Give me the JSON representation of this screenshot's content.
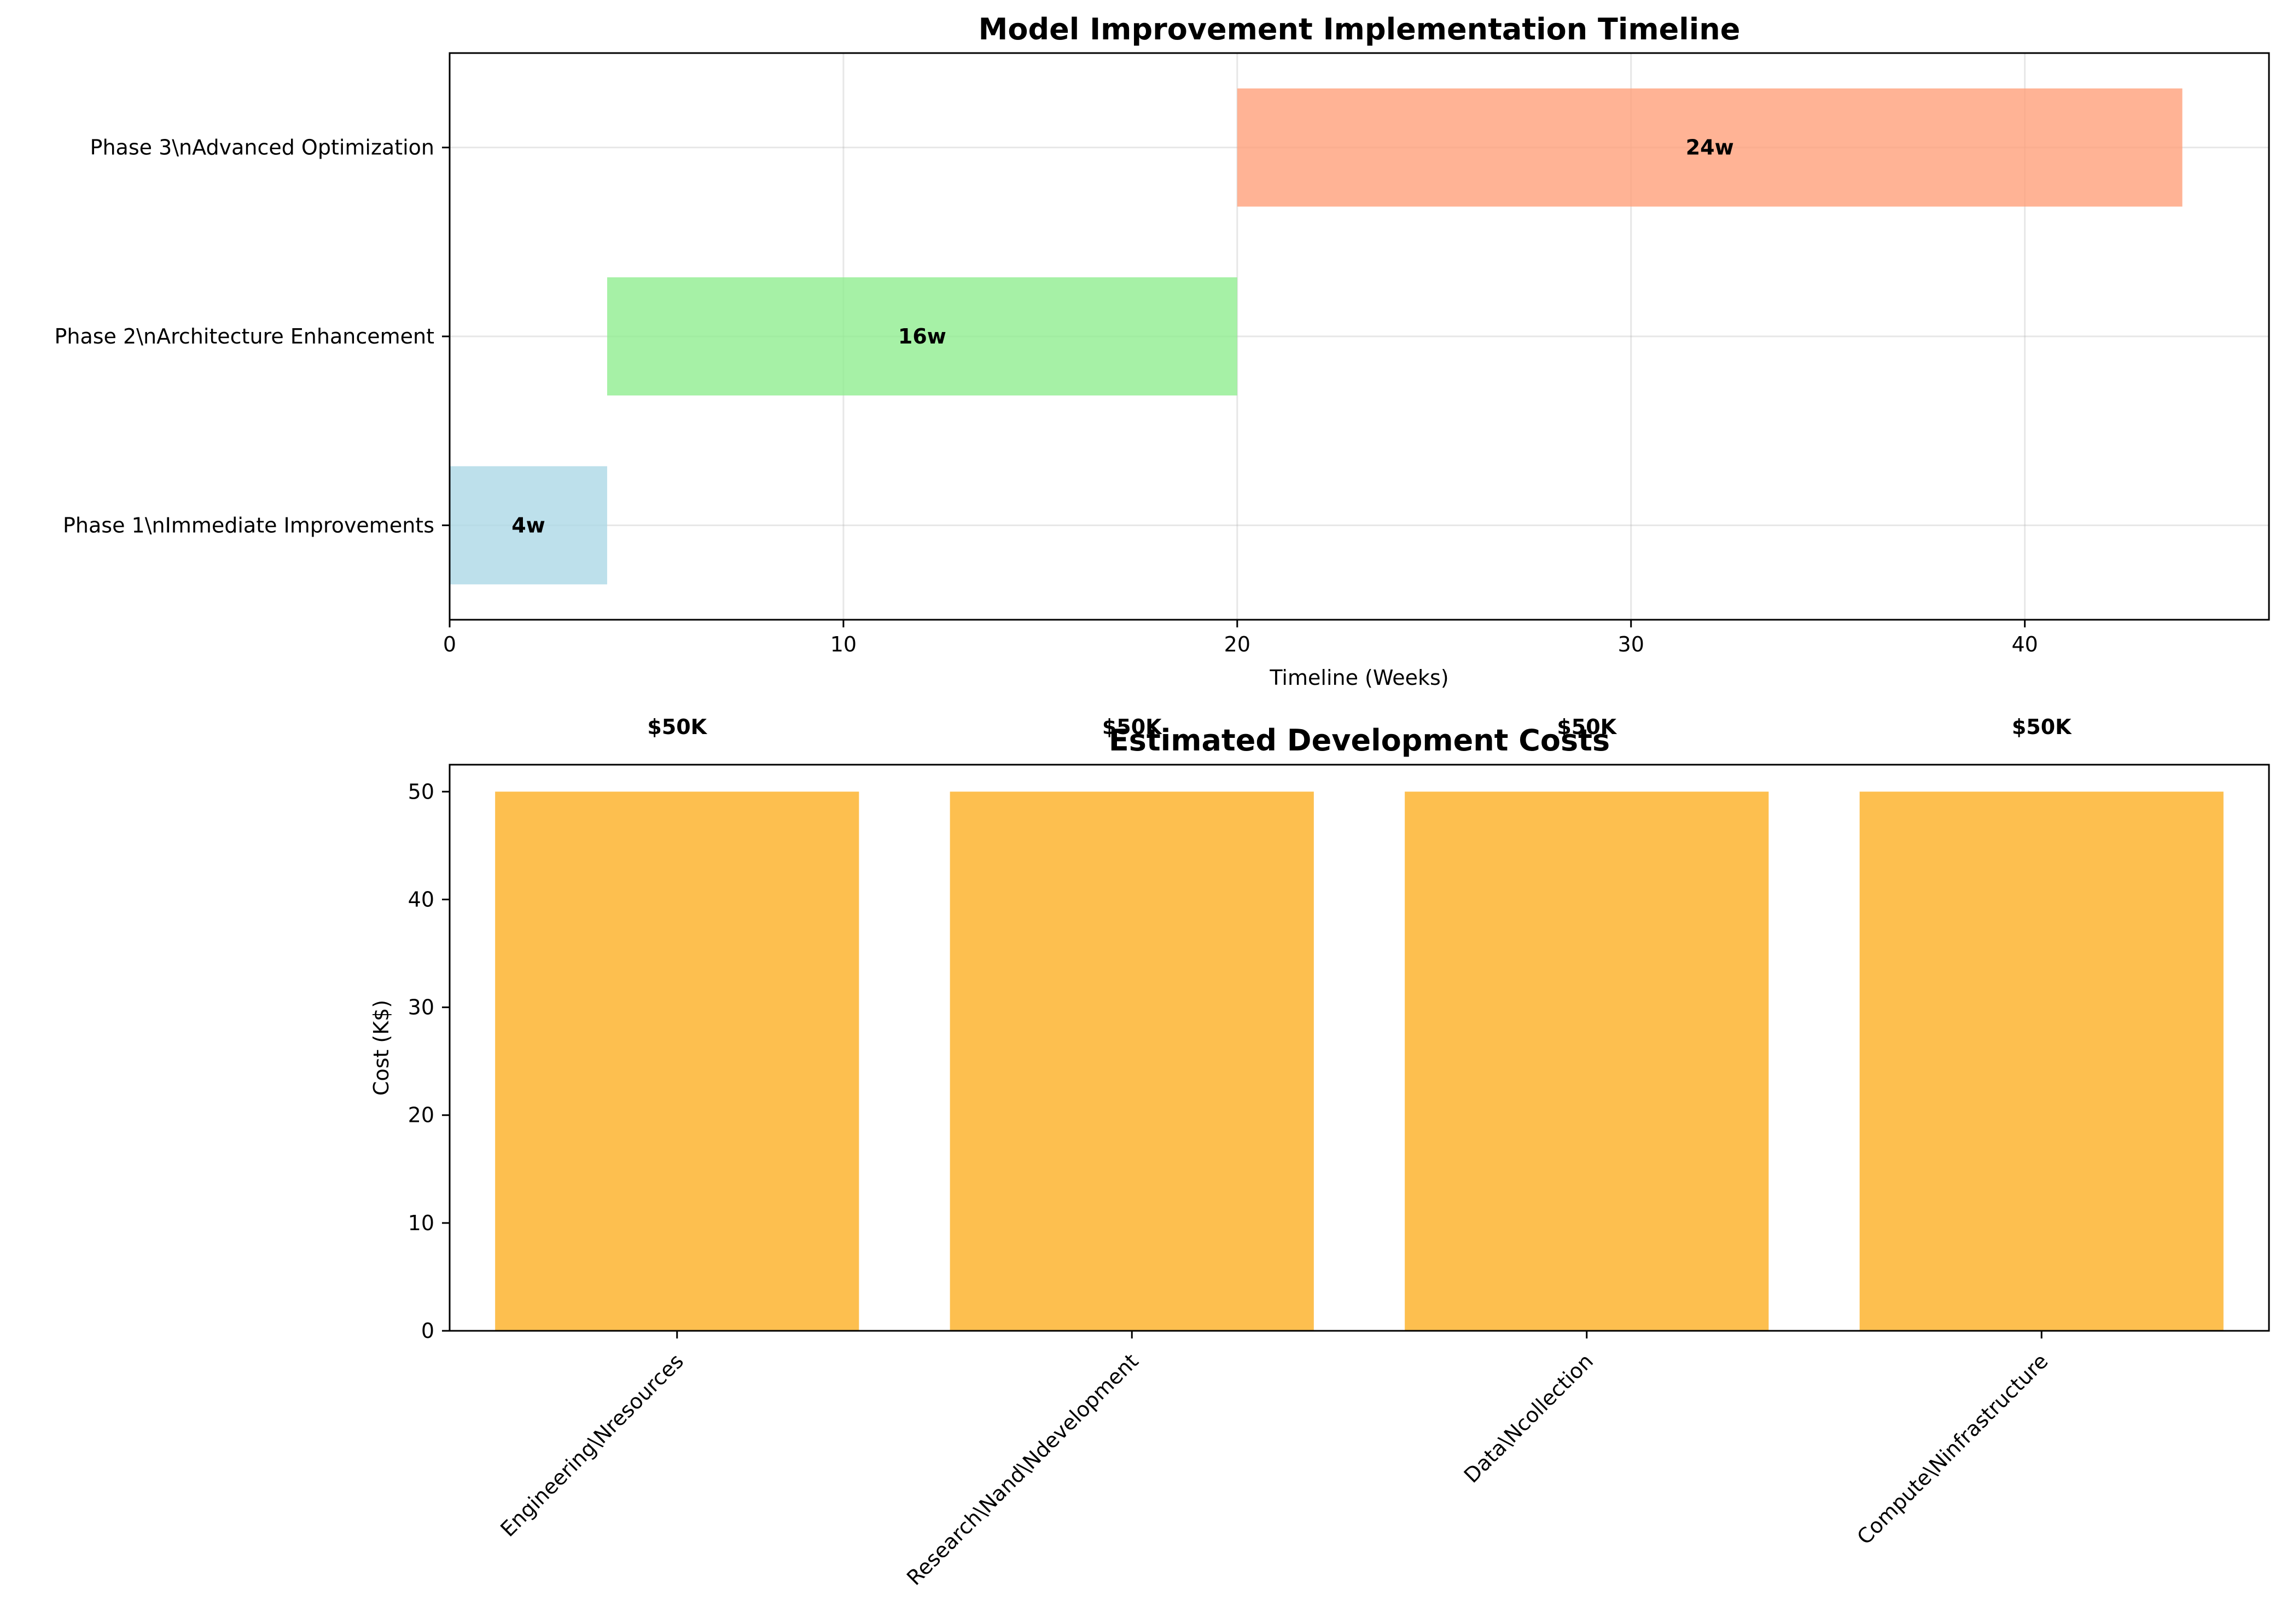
{
  "chart_data": [
    {
      "type": "bar",
      "orientation": "horizontal",
      "title": "Model Improvement Implementation Timeline",
      "xlabel": "Timeline (Weeks)",
      "ylabel": "",
      "xlim": [
        0,
        46.2
      ],
      "xticks": [
        0,
        10,
        20,
        30,
        40
      ],
      "grid": true,
      "phases": [
        {
          "label": "Phase 1\\nImmediate Improvements",
          "start": 0,
          "duration": 4,
          "bar_label": "4w",
          "color": "#add8e6"
        },
        {
          "label": "Phase 2\\nArchitecture Enhancement",
          "start": 4,
          "duration": 16,
          "bar_label": "16w",
          "color": "#90ee90"
        },
        {
          "label": "Phase 3\\nAdvanced Optimization",
          "start": 20,
          "duration": 24,
          "bar_label": "24w",
          "color": "#ffa07a"
        }
      ]
    },
    {
      "type": "bar",
      "title": "Estimated Development Costs",
      "xlabel": "",
      "ylabel": "Cost (K$)",
      "ylim": [
        0,
        52.5
      ],
      "yticks": [
        0,
        10,
        20,
        30,
        40,
        50
      ],
      "grid": false,
      "color": "#fdbf4f",
      "categories": [
        "Engineering\\Nresources",
        "Research\\Nand\\Ndevelopment",
        "Data\\Ncollection",
        "Compute\\Ninfrastructure"
      ],
      "values": [
        50,
        50,
        50,
        50
      ],
      "bar_labels": [
        "$50K",
        "$50K",
        "$50K",
        "$50K"
      ]
    }
  ]
}
